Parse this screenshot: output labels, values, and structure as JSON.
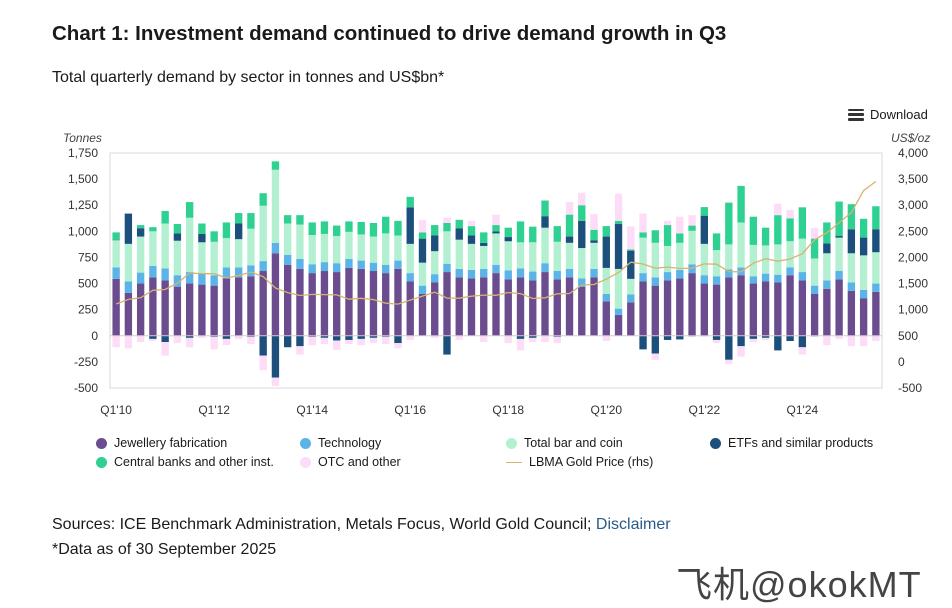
{
  "title": "Chart 1: Investment demand continued to drive demand growth in Q3",
  "subtitle": "Total quarterly demand by sector in tonnes and US$bn*",
  "download_label": "Download",
  "left_axis_title": "Tonnes",
  "right_axis_title": "US$/oz",
  "sources_prefix": "Sources: ICE Benchmark Administration, Metals Focus, World Gold Council;",
  "disclaimer_label": "Disclaimer",
  "note": "*Data as of 30 September 2025",
  "watermark": "飞机@okokMT",
  "chart_data": {
    "type": "bar",
    "stacked": true,
    "x_ticks": [
      "Q1'10",
      "Q1'12",
      "Q1'14",
      "Q1'16",
      "Q1'18",
      "Q1'20",
      "Q1'22",
      "Q1'24"
    ],
    "ylim": [
      -500,
      1750
    ],
    "yticks": [
      -500,
      -250,
      0,
      250,
      500,
      750,
      1000,
      1250,
      1500,
      1750
    ],
    "y2lim": [
      -500,
      4000
    ],
    "y2ticks": [
      -500,
      0,
      500,
      1000,
      1500,
      2000,
      2500,
      3000,
      3500,
      4000
    ],
    "ylabel": "Tonnes",
    "y2label": "US$/oz",
    "quarters": [
      "Q1'10",
      "Q2'10",
      "Q3'10",
      "Q4'10",
      "Q1'11",
      "Q2'11",
      "Q3'11",
      "Q4'11",
      "Q1'12",
      "Q2'12",
      "Q3'12",
      "Q4'12",
      "Q1'13",
      "Q2'13",
      "Q3'13",
      "Q4'13",
      "Q1'14",
      "Q2'14",
      "Q3'14",
      "Q4'14",
      "Q1'15",
      "Q2'15",
      "Q3'15",
      "Q4'15",
      "Q1'16",
      "Q2'16",
      "Q3'16",
      "Q4'16",
      "Q1'17",
      "Q2'17",
      "Q3'17",
      "Q4'17",
      "Q1'18",
      "Q2'18",
      "Q3'18",
      "Q4'18",
      "Q1'19",
      "Q2'19",
      "Q3'19",
      "Q4'19",
      "Q1'20",
      "Q2'20",
      "Q3'20",
      "Q4'20",
      "Q1'21",
      "Q2'21",
      "Q3'21",
      "Q4'21",
      "Q1'22",
      "Q2'22",
      "Q3'22",
      "Q4'22",
      "Q1'23",
      "Q2'23",
      "Q3'23",
      "Q4'23",
      "Q1'24",
      "Q2'24",
      "Q3'24",
      "Q4'24",
      "Q1'25",
      "Q2'25",
      "Q3'25"
    ],
    "series": [
      {
        "name": "Jewellery fabrication",
        "color": "#6b4c8f",
        "values": [
          545,
          410,
          500,
          560,
          530,
          470,
          500,
          490,
          480,
          550,
          560,
          570,
          620,
          790,
          680,
          640,
          600,
          620,
          610,
          650,
          640,
          620,
          600,
          640,
          520,
          400,
          510,
          610,
          560,
          550,
          560,
          600,
          540,
          560,
          530,
          610,
          540,
          560,
          470,
          560,
          330,
          200,
          320,
          520,
          480,
          530,
          550,
          600,
          500,
          490,
          560,
          580,
          500,
          520,
          510,
          580,
          530,
          400,
          450,
          540,
          430,
          360,
          420
        ]
      },
      {
        "name": "Technology",
        "color": "#5ab4e8",
        "values": [
          110,
          110,
          105,
          110,
          115,
          110,
          110,
          105,
          100,
          105,
          95,
          105,
          95,
          100,
          95,
          95,
          85,
          85,
          85,
          85,
          80,
          80,
          80,
          80,
          80,
          80,
          80,
          80,
          80,
          80,
          80,
          80,
          85,
          85,
          85,
          85,
          80,
          80,
          80,
          80,
          70,
          60,
          75,
          80,
          80,
          80,
          80,
          85,
          80,
          80,
          75,
          75,
          70,
          75,
          75,
          75,
          80,
          80,
          80,
          80,
          80,
          80,
          80
        ]
      },
      {
        "name": "Total bar and coin",
        "color": "#b3f0d2",
        "values": [
          260,
          360,
          345,
          330,
          430,
          330,
          520,
          300,
          320,
          280,
          270,
          350,
          530,
          700,
          300,
          330,
          280,
          270,
          260,
          260,
          250,
          250,
          300,
          240,
          280,
          220,
          220,
          310,
          280,
          250,
          220,
          300,
          280,
          250,
          280,
          340,
          280,
          250,
          290,
          250,
          250,
          380,
          150,
          340,
          330,
          250,
          260,
          320,
          300,
          250,
          240,
          430,
          300,
          270,
          290,
          250,
          320,
          260,
          260,
          320,
          280,
          330,
          300
        ]
      },
      {
        "name": "ETFs and similar products",
        "color": "#1c4f7c",
        "values": [
          5,
          290,
          80,
          -30,
          -60,
          70,
          -20,
          80,
          -10,
          -30,
          150,
          -10,
          -190,
          -400,
          -110,
          -100,
          -10,
          -20,
          -45,
          -40,
          -30,
          -20,
          -10,
          -70,
          350,
          230,
          150,
          -180,
          110,
          80,
          30,
          20,
          40,
          -30,
          -20,
          110,
          -10,
          60,
          260,
          25,
          300,
          430,
          270,
          -130,
          -170,
          -40,
          -35,
          -5,
          270,
          -40,
          -230,
          -100,
          -30,
          -20,
          -140,
          -50,
          -110,
          -5,
          95,
          15,
          230,
          170,
          220
        ]
      },
      {
        "name": "Central banks and other inst.",
        "color": "#2ed191",
        "values": [
          70,
          0,
          30,
          40,
          120,
          90,
          150,
          100,
          100,
          150,
          100,
          150,
          120,
          80,
          80,
          90,
          120,
          120,
          100,
          100,
          120,
          130,
          160,
          140,
          100,
          60,
          100,
          80,
          80,
          90,
          100,
          60,
          90,
          200,
          150,
          150,
          150,
          210,
          150,
          100,
          100,
          30,
          12,
          50,
          120,
          200,
          90,
          50,
          82,
          160,
          400,
          350,
          270,
          170,
          280,
          220,
          300,
          190,
          200,
          330,
          240,
          180,
          220
        ]
      },
      {
        "name": "OTC and other",
        "color": "#fcdcf6",
        "values": [
          -110,
          -120,
          -60,
          -20,
          -130,
          -70,
          -90,
          -20,
          -120,
          -60,
          -30,
          -70,
          -140,
          -80,
          0,
          -80,
          -80,
          -60,
          -90,
          -40,
          -60,
          -50,
          -70,
          -50,
          -40,
          120,
          -20,
          50,
          -40,
          50,
          -60,
          100,
          -70,
          -110,
          -40,
          -60,
          -60,
          120,
          120,
          150,
          -50,
          260,
          220,
          180,
          -60,
          40,
          160,
          100,
          -10,
          -30,
          -40,
          -100,
          -30,
          -20,
          110,
          80,
          -70,
          100,
          -90,
          -30,
          -100,
          -100,
          -50
        ]
      },
      {
        "name": "LBMA Gold Price (rhs)",
        "color": "#d6b370",
        "type": "line",
        "axis": "right",
        "values": [
          1109,
          1197,
          1227,
          1370,
          1386,
          1506,
          1702,
          1688,
          1691,
          1609,
          1652,
          1722,
          1632,
          1415,
          1326,
          1272,
          1293,
          1288,
          1282,
          1201,
          1218,
          1192,
          1124,
          1106,
          1183,
          1260,
          1335,
          1222,
          1219,
          1257,
          1278,
          1275,
          1329,
          1306,
          1213,
          1228,
          1304,
          1309,
          1472,
          1481,
          1583,
          1711,
          1909,
          1874,
          1794,
          1816,
          1789,
          1795,
          1877,
          1871,
          1729,
          1726,
          1890,
          1976,
          1928,
          1971,
          2070,
          2338,
          2474,
          2663,
          2860,
          3280,
          3457
        ]
      }
    ]
  }
}
